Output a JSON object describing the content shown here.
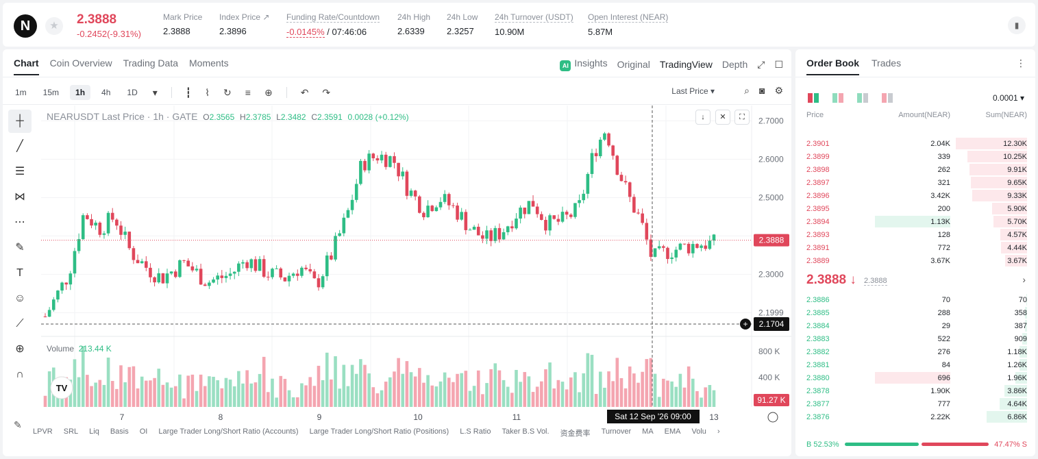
{
  "header": {
    "price": "2.3888",
    "change": "-0.2452(-9.31%)",
    "stats": [
      {
        "label": "Mark Price",
        "value": "2.3888"
      },
      {
        "label": "Index Price ↗",
        "value": "2.3896"
      },
      {
        "label": "Funding Rate/Countdown",
        "value_red": "-0.0145%",
        "value": "/ 07:46:06"
      },
      {
        "label": "24h High",
        "value": "2.6339"
      },
      {
        "label": "24h Low",
        "value": "2.3257"
      },
      {
        "label": "24h Turnover (USDT)",
        "value": "10.90M"
      },
      {
        "label": "Open Interest (NEAR)",
        "value": "5.87M"
      }
    ]
  },
  "chart_tabs": [
    "Chart",
    "Coin Overview",
    "Trading Data",
    "Moments"
  ],
  "view_tabs": [
    "Insights",
    "Original",
    "TradingView",
    "Depth"
  ],
  "intervals": [
    "1m",
    "15m",
    "1h",
    "4h",
    "1D"
  ],
  "price_type": "Last Price",
  "legend": {
    "symbol": "NEARUSDT Last Price · 1h · GATE",
    "o": "2.3565",
    "h": "2.3785",
    "l": "2.3482",
    "c": "2.3591",
    "chg": "0.0028 (+0.12%)"
  },
  "volume_legend": {
    "label": "Volume",
    "value": "213.44 K"
  },
  "indicators": [
    "LPVR",
    "SRL",
    "Liq",
    "Basis",
    "OI",
    "Large Trader Long/Short Ratio (Accounts)",
    "Large Trader Long/Short Ratio (Positions)",
    "L.S Ratio",
    "Taker B.S Vol.",
    "资金费率",
    "Turnover",
    "MA",
    "EMA",
    "Volu"
  ],
  "chart_data": {
    "type": "candlestick",
    "y_axis_ticks": [
      "2.7000",
      "2.6000",
      "2.5000",
      "2.3000",
      "2.1999"
    ],
    "y_range": [
      2.14,
      2.74
    ],
    "volume_ticks": [
      "800 K",
      "400 K"
    ],
    "x_ticks": [
      "7",
      "8",
      "9",
      "10",
      "11",
      "13"
    ],
    "last_price_label": "2.3888",
    "crosshair_price_label": "2.1704",
    "crosshair_time_label": "Sat 12 Sep '26   09:00",
    "volume_last_label": "91.27 K",
    "colors": {
      "up": "#2ebd85",
      "down": "#e0475b"
    }
  },
  "order_book": {
    "tabs": [
      "Order Book",
      "Trades"
    ],
    "precision": "0.0001",
    "columns": [
      "Price",
      "Amount(NEAR)",
      "Sum(NEAR)"
    ],
    "asks": [
      {
        "price": "2.3901",
        "amount": "2.04K",
        "sum": "12.30K",
        "depth": 0.98
      },
      {
        "price": "2.3899",
        "amount": "339",
        "sum": "10.25K",
        "depth": 0.82
      },
      {
        "price": "2.3898",
        "amount": "262",
        "sum": "9.91K",
        "depth": 0.79
      },
      {
        "price": "2.3897",
        "amount": "321",
        "sum": "9.65K",
        "depth": 0.77
      },
      {
        "price": "2.3896",
        "amount": "3.42K",
        "sum": "9.33K",
        "depth": 0.75
      },
      {
        "price": "2.3895",
        "amount": "200",
        "sum": "5.90K",
        "depth": 0.48
      },
      {
        "price": "2.3894",
        "amount": "1.13K",
        "sum": "5.70K",
        "depth": 0.46,
        "amount_hl": 0.55
      },
      {
        "price": "2.3893",
        "amount": "128",
        "sum": "4.57K",
        "depth": 0.37
      },
      {
        "price": "2.3891",
        "amount": "772",
        "sum": "4.44K",
        "depth": 0.36
      },
      {
        "price": "2.3889",
        "amount": "3.67K",
        "sum": "3.67K",
        "depth": 0.3
      }
    ],
    "mid_price": "2.3888",
    "mid_mark": "2.3888",
    "bids": [
      {
        "price": "2.3886",
        "amount": "70",
        "sum": "70",
        "depth": 0.01
      },
      {
        "price": "2.3885",
        "amount": "288",
        "sum": "358",
        "depth": 0.03
      },
      {
        "price": "2.3884",
        "amount": "29",
        "sum": "387",
        "depth": 0.03
      },
      {
        "price": "2.3883",
        "amount": "522",
        "sum": "909",
        "depth": 0.07
      },
      {
        "price": "2.3882",
        "amount": "276",
        "sum": "1.18K",
        "depth": 0.1
      },
      {
        "price": "2.3881",
        "amount": "84",
        "sum": "1.26K",
        "depth": 0.1
      },
      {
        "price": "2.3880",
        "amount": "696",
        "sum": "1.96K",
        "depth": 0.16,
        "amount_hl_red": 0.6
      },
      {
        "price": "2.3878",
        "amount": "1.90K",
        "sum": "3.86K",
        "depth": 0.31
      },
      {
        "price": "2.3877",
        "amount": "777",
        "sum": "4.64K",
        "depth": 0.38
      },
      {
        "price": "2.3876",
        "amount": "2.22K",
        "sum": "6.86K",
        "depth": 0.56
      }
    ],
    "buy_ratio": "B 52.53%",
    "sell_ratio": "47.47% S",
    "buy_fraction": 0.5253
  }
}
